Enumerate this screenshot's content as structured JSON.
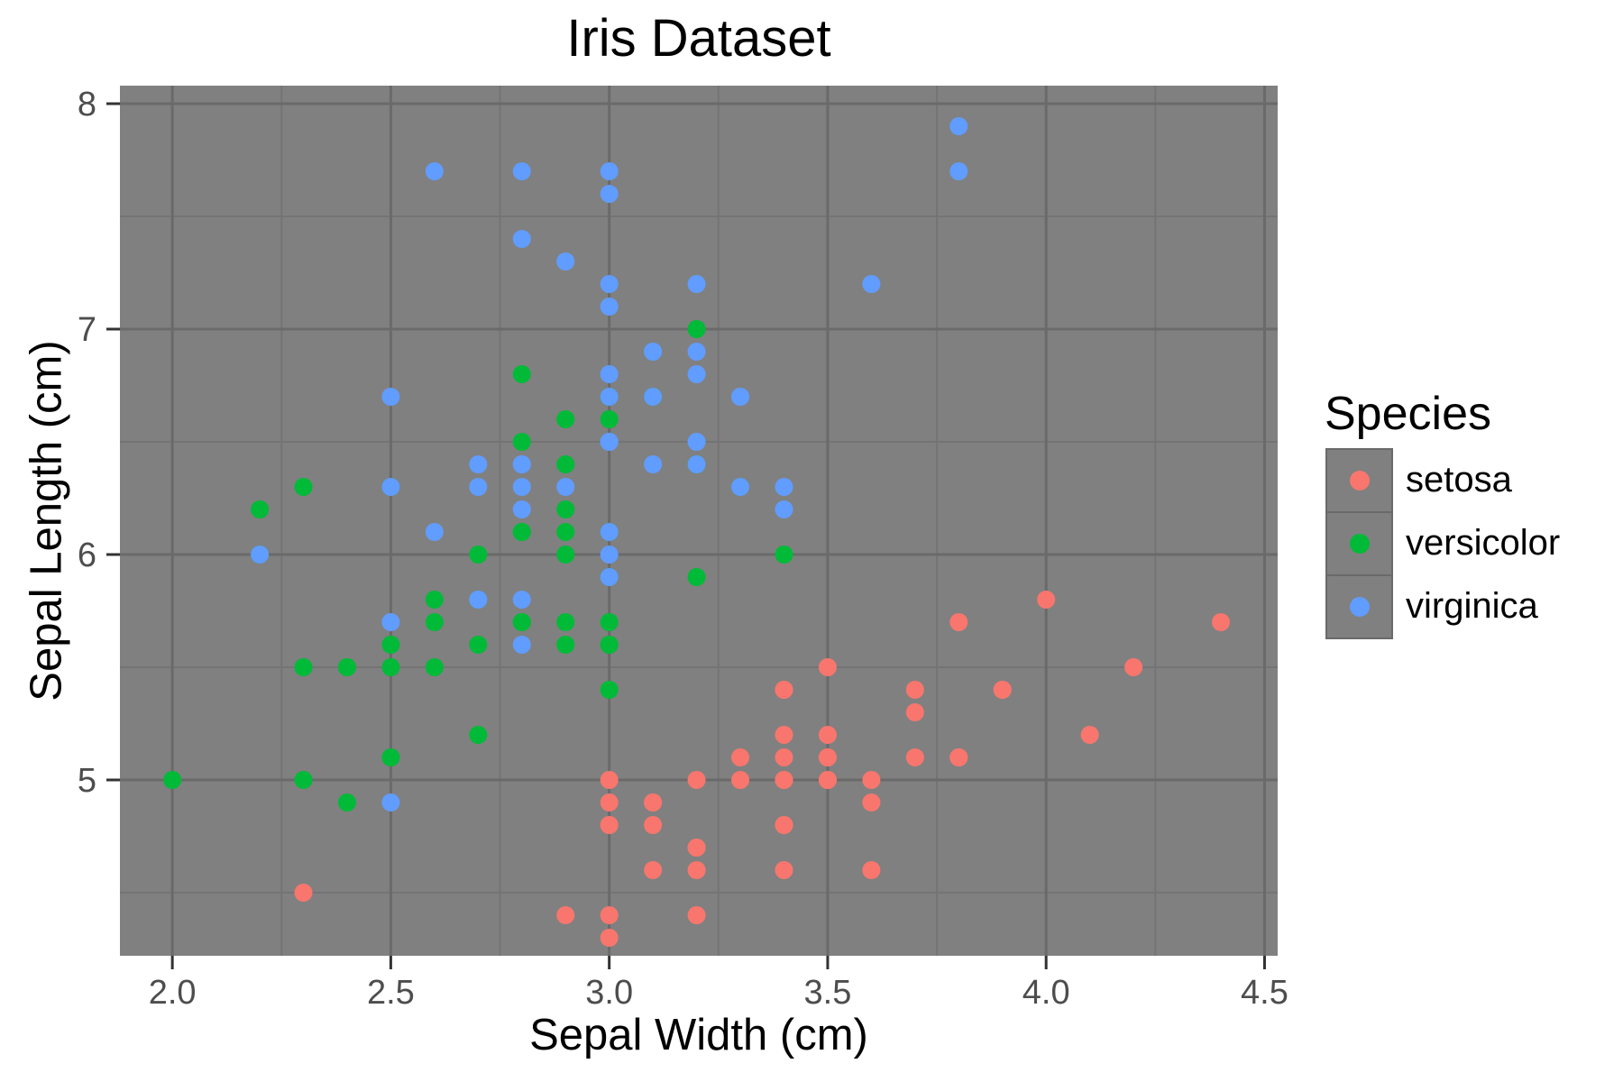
{
  "chart_data": {
    "type": "scatter",
    "title": "Iris Dataset",
    "xlabel": "Sepal Width (cm)",
    "ylabel": "Sepal Length (cm)",
    "legend_title": "Species",
    "legend_position": "right",
    "grid": true,
    "xlim": [
      1.88,
      4.53
    ],
    "ylim": [
      4.22,
      8.08
    ],
    "xticks": [
      2.0,
      2.5,
      3.0,
      3.5,
      4.0,
      4.5
    ],
    "xtick_labels": [
      "2.0",
      "2.5",
      "3.0",
      "3.5",
      "4.0",
      "4.5"
    ],
    "yticks": [
      5,
      6,
      7,
      8
    ],
    "ytick_labels": [
      "5",
      "6",
      "7",
      "8"
    ],
    "x_minor": [
      2.25,
      2.75,
      3.25,
      3.75,
      4.25
    ],
    "y_minor": [
      4.5,
      5.5,
      6.5,
      7.5
    ],
    "colors": {
      "panel_bg": "#808080",
      "grid_major": "#6a6a6a",
      "grid_minor": "#747474",
      "tick_mark": "#333333",
      "tick_label": "#4d4d4d",
      "text": "#000000"
    },
    "series": [
      {
        "name": "setosa",
        "color": "#F8766D",
        "points": [
          [
            3.5,
            5.1
          ],
          [
            3.0,
            4.9
          ],
          [
            3.2,
            4.7
          ],
          [
            3.1,
            4.6
          ],
          [
            3.6,
            5.0
          ],
          [
            3.9,
            5.4
          ],
          [
            3.4,
            4.6
          ],
          [
            3.4,
            5.0
          ],
          [
            2.9,
            4.4
          ],
          [
            3.1,
            4.9
          ],
          [
            3.7,
            5.4
          ],
          [
            3.4,
            4.8
          ],
          [
            3.0,
            4.8
          ],
          [
            3.0,
            4.3
          ],
          [
            4.0,
            5.8
          ],
          [
            4.4,
            5.7
          ],
          [
            3.9,
            5.4
          ],
          [
            3.5,
            5.1
          ],
          [
            3.8,
            5.7
          ],
          [
            3.8,
            5.1
          ],
          [
            3.4,
            5.4
          ],
          [
            3.7,
            5.1
          ],
          [
            3.6,
            4.6
          ],
          [
            3.3,
            5.1
          ],
          [
            3.4,
            4.8
          ],
          [
            3.0,
            5.0
          ],
          [
            3.4,
            5.0
          ],
          [
            3.5,
            5.2
          ],
          [
            3.4,
            5.2
          ],
          [
            3.2,
            4.7
          ],
          [
            3.1,
            4.8
          ],
          [
            3.4,
            5.4
          ],
          [
            4.1,
            5.2
          ],
          [
            4.2,
            5.5
          ],
          [
            3.1,
            4.9
          ],
          [
            3.2,
            5.0
          ],
          [
            3.5,
            5.5
          ],
          [
            3.6,
            4.9
          ],
          [
            3.0,
            4.4
          ],
          [
            3.4,
            5.1
          ],
          [
            3.5,
            5.0
          ],
          [
            2.3,
            4.5
          ],
          [
            3.2,
            4.4
          ],
          [
            3.5,
            5.0
          ],
          [
            3.8,
            5.1
          ],
          [
            3.0,
            4.8
          ],
          [
            3.8,
            5.1
          ],
          [
            3.2,
            4.6
          ],
          [
            3.7,
            5.3
          ],
          [
            3.3,
            5.0
          ]
        ]
      },
      {
        "name": "versicolor",
        "color": "#00BA38",
        "points": [
          [
            3.2,
            7.0
          ],
          [
            3.2,
            6.4
          ],
          [
            3.1,
            6.9
          ],
          [
            2.3,
            5.5
          ],
          [
            2.8,
            6.5
          ],
          [
            2.8,
            5.7
          ],
          [
            3.3,
            6.3
          ],
          [
            2.4,
            4.9
          ],
          [
            2.9,
            6.6
          ],
          [
            2.7,
            5.2
          ],
          [
            2.0,
            5.0
          ],
          [
            3.0,
            5.9
          ],
          [
            2.2,
            6.0
          ],
          [
            2.9,
            6.1
          ],
          [
            2.9,
            5.6
          ],
          [
            3.1,
            6.7
          ],
          [
            3.0,
            5.6
          ],
          [
            2.7,
            5.8
          ],
          [
            2.2,
            6.2
          ],
          [
            2.5,
            5.6
          ],
          [
            3.2,
            5.9
          ],
          [
            2.8,
            6.1
          ],
          [
            2.5,
            6.3
          ],
          [
            2.8,
            6.1
          ],
          [
            2.9,
            6.4
          ],
          [
            3.0,
            6.6
          ],
          [
            2.8,
            6.8
          ],
          [
            3.0,
            6.7
          ],
          [
            2.9,
            6.0
          ],
          [
            2.6,
            5.7
          ],
          [
            2.4,
            5.5
          ],
          [
            2.4,
            5.5
          ],
          [
            2.7,
            5.8
          ],
          [
            2.7,
            6.0
          ],
          [
            3.0,
            5.4
          ],
          [
            3.4,
            6.0
          ],
          [
            3.1,
            6.7
          ],
          [
            2.3,
            6.3
          ],
          [
            3.0,
            5.6
          ],
          [
            2.5,
            5.5
          ],
          [
            2.6,
            5.5
          ],
          [
            3.0,
            6.1
          ],
          [
            2.6,
            5.8
          ],
          [
            2.3,
            5.0
          ],
          [
            2.7,
            5.6
          ],
          [
            3.0,
            5.7
          ],
          [
            2.9,
            5.7
          ],
          [
            2.9,
            6.2
          ],
          [
            2.5,
            5.1
          ],
          [
            2.8,
            5.7
          ]
        ]
      },
      {
        "name": "virginica",
        "color": "#619CFF",
        "points": [
          [
            3.3,
            6.3
          ],
          [
            2.7,
            5.8
          ],
          [
            3.0,
            7.1
          ],
          [
            2.9,
            6.3
          ],
          [
            3.0,
            6.5
          ],
          [
            3.0,
            7.6
          ],
          [
            2.5,
            4.9
          ],
          [
            2.9,
            7.3
          ],
          [
            2.5,
            6.7
          ],
          [
            3.6,
            7.2
          ],
          [
            3.2,
            6.5
          ],
          [
            2.7,
            6.4
          ],
          [
            3.0,
            6.8
          ],
          [
            2.5,
            5.7
          ],
          [
            2.8,
            5.8
          ],
          [
            3.2,
            6.4
          ],
          [
            3.0,
            6.5
          ],
          [
            3.8,
            7.7
          ],
          [
            2.6,
            7.7
          ],
          [
            2.2,
            6.0
          ],
          [
            3.2,
            6.9
          ],
          [
            2.8,
            5.6
          ],
          [
            2.8,
            7.7
          ],
          [
            2.7,
            6.3
          ],
          [
            3.3,
            6.7
          ],
          [
            3.2,
            7.2
          ],
          [
            2.8,
            6.2
          ],
          [
            3.0,
            6.1
          ],
          [
            2.8,
            6.4
          ],
          [
            3.0,
            7.2
          ],
          [
            2.8,
            7.4
          ],
          [
            3.8,
            7.9
          ],
          [
            2.8,
            6.4
          ],
          [
            2.8,
            6.3
          ],
          [
            2.6,
            6.1
          ],
          [
            3.0,
            7.7
          ],
          [
            3.4,
            6.3
          ],
          [
            3.1,
            6.4
          ],
          [
            3.0,
            6.0
          ],
          [
            3.1,
            6.9
          ],
          [
            3.1,
            6.7
          ],
          [
            3.1,
            6.9
          ],
          [
            2.7,
            5.8
          ],
          [
            3.2,
            6.8
          ],
          [
            3.3,
            6.7
          ],
          [
            3.0,
            6.7
          ],
          [
            2.5,
            6.3
          ],
          [
            3.0,
            6.5
          ],
          [
            3.4,
            6.2
          ],
          [
            3.0,
            5.9
          ]
        ]
      }
    ]
  }
}
